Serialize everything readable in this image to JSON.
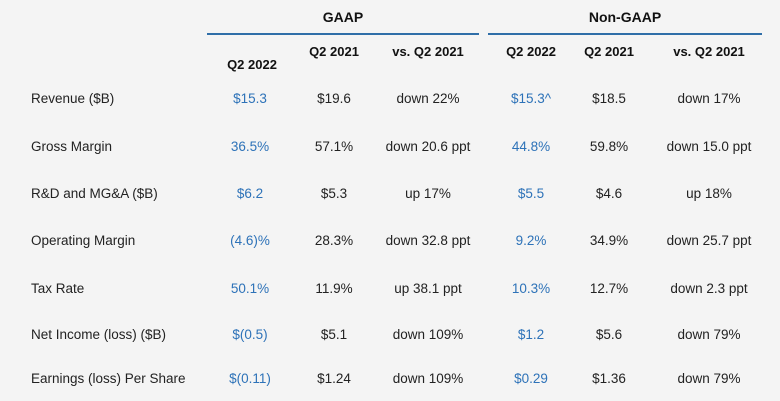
{
  "groups": {
    "gaap": "GAAP",
    "nongaap": "Non-GAAP"
  },
  "columns": {
    "gaap_q2_2022": "Q2 2022",
    "gaap_q2_2021": "Q2 2021",
    "gaap_vs": "vs. Q2 2021",
    "ng_q2_2022": "Q2 2022",
    "ng_q2_2021": "Q2 2021",
    "ng_vs": "vs. Q2 2021"
  },
  "rows": [
    {
      "label": "Revenue ($B)",
      "gaap_2022": "$15.3",
      "gaap_2021": "$19.6",
      "gaap_vs": "down 22%",
      "ng_2022": "$15.3^",
      "ng_2021": "$18.5",
      "ng_vs": "down 17%"
    },
    {
      "label": "Gross Margin",
      "gaap_2022": "36.5%",
      "gaap_2021": "57.1%",
      "gaap_vs": "down 20.6 ppt",
      "ng_2022": "44.8%",
      "ng_2021": "59.8%",
      "ng_vs": "down 15.0 ppt"
    },
    {
      "label": "R&D and MG&A ($B)",
      "gaap_2022": "$6.2",
      "gaap_2021": "$5.3",
      "gaap_vs": "up 17%",
      "ng_2022": "$5.5",
      "ng_2021": "$4.6",
      "ng_vs": "up 18%"
    },
    {
      "label": "Operating Margin",
      "gaap_2022": "(4.6)%",
      "gaap_2021": "28.3%",
      "gaap_vs": "down 32.8 ppt",
      "ng_2022": "9.2%",
      "ng_2021": "34.9%",
      "ng_vs": "down 25.7 ppt"
    },
    {
      "label": "Tax Rate",
      "gaap_2022": "50.1%",
      "gaap_2021": "11.9%",
      "gaap_vs": "up 38.1 ppt",
      "ng_2022": "10.3%",
      "ng_2021": "12.7%",
      "ng_vs": "down 2.3 ppt"
    },
    {
      "label": "Net Income (loss) ($B)",
      "gaap_2022": "$(0.5)",
      "gaap_2021": "$5.1",
      "gaap_vs": "down 109%",
      "ng_2022": "$1.2",
      "ng_2021": "$5.6",
      "ng_vs": "down 79%"
    },
    {
      "label": "Earnings (loss) Per Share",
      "gaap_2022": "$(0.11)",
      "gaap_2021": "$1.24",
      "gaap_vs": "down 109%",
      "ng_2022": "$0.29",
      "ng_2021": "$1.36",
      "ng_vs": "down 79%"
    }
  ],
  "colors": {
    "accent_blue": "#2d72b8",
    "rule_blue": "#2f6ea8",
    "background": "#f4f4f4",
    "text": "#222222"
  }
}
